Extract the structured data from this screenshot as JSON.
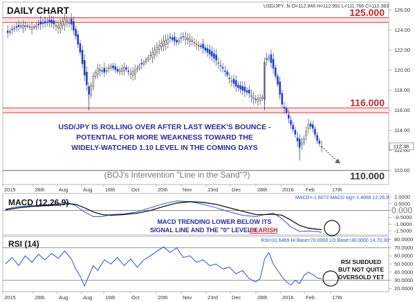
{
  "chart_data": [
    {
      "type": "candlestick",
      "title": "DAILY CHART",
      "symbol_readout": "USD/JPY .fx O=112.948 H=112.991 L=111.766 C=112.383",
      "x_tick_labels": [
        "2015",
        "28th",
        "Aug",
        "Aug",
        "16th",
        "Oct",
        "20th",
        "Nov",
        "23rd",
        "Dec",
        "28th",
        "2016",
        "Feb",
        "17th"
      ],
      "y_tick_labels": [
        "126.00",
        "124.00",
        "122.00",
        "120.00",
        "118.00",
        "116.00",
        "114.00",
        "112.00",
        "110.00"
      ],
      "ylim": [
        108.6,
        126.8
      ],
      "last_value_label": "112.38",
      "horizontal_levels": [
        {
          "value": 125.0,
          "label": "125.000",
          "color": "#e0363c"
        },
        {
          "value": 116.0,
          "label": "116.000",
          "color": "#e0363c"
        },
        {
          "value": 110.0,
          "label": "110.000",
          "color": "#333333"
        }
      ],
      "annotations": [
        "USD/JPY IS ROLLING OVER AFTER LAST WEEK'S BOUNCE -",
        "POTENTIAL FOR MORE WEAKNESS TOWARD THE",
        "WIDELY-WATCHED 1.10 LEVEL IN THE COMING DAYS"
      ],
      "callout": "(BOJ's Intervention \"Line in the Sand\"?)",
      "close_path": [
        [
          0,
          123.6
        ],
        [
          4,
          124.2
        ],
        [
          8,
          124.5
        ],
        [
          12,
          124.3
        ],
        [
          16,
          124.6
        ],
        [
          20,
          124.8
        ],
        [
          24,
          124.4
        ],
        [
          27,
          125.1
        ],
        [
          30,
          124.6
        ],
        [
          32,
          123.4
        ],
        [
          34,
          121.8
        ],
        [
          36,
          119.5
        ],
        [
          38,
          117.6
        ],
        [
          40,
          119.4
        ],
        [
          42,
          120.2
        ],
        [
          45,
          119.8
        ],
        [
          48,
          120.4
        ],
        [
          51,
          119.9
        ],
        [
          54,
          120.3
        ],
        [
          57,
          119.7
        ],
        [
          60,
          120.2
        ],
        [
          63,
          120.8
        ],
        [
          66,
          121.5
        ],
        [
          69,
          122.3
        ],
        [
          72,
          122.9
        ],
        [
          75,
          123.2
        ],
        [
          78,
          122.8
        ],
        [
          81,
          123.4
        ],
        [
          84,
          123.1
        ],
        [
          87,
          122.6
        ],
        [
          90,
          122.2
        ],
        [
          93,
          121.6
        ],
        [
          96,
          121.0
        ],
        [
          99,
          120.2
        ],
        [
          102,
          119.2
        ],
        [
          105,
          118.4
        ],
        [
          108,
          118.0
        ],
        [
          111,
          117.7
        ],
        [
          114,
          117.1
        ],
        [
          117,
          117.3
        ],
        [
          118,
          120.8
        ],
        [
          120,
          121.3
        ],
        [
          122,
          120.2
        ],
        [
          124,
          118.6
        ],
        [
          126,
          116.6
        ],
        [
          128,
          115.8
        ],
        [
          130,
          114.6
        ],
        [
          132,
          113.6
        ],
        [
          134,
          112.3
        ],
        [
          136,
          113.2
        ],
        [
          138,
          114.6
        ],
        [
          140,
          114.2
        ],
        [
          142,
          113.0
        ],
        [
          144,
          112.4
        ]
      ],
      "projection": [
        [
          144,
          112.4
        ],
        [
          150,
          110.7
        ]
      ]
    },
    {
      "type": "line",
      "title": "MACD (12,26,9)",
      "readout": "MACD=-1.6072 MACD sig=-1.4068 12,26,9",
      "y_tick_labels": [
        "1.0000",
        "0.5000",
        "0.000",
        "-0.5000",
        "-1.0000",
        "-1.5000"
      ],
      "ylim": [
        -1.8,
        1.25
      ],
      "zero_level": 0,
      "annotation_lines": [
        "MACD TRENDING LOWER BELOW ITS",
        "SIGNAL LINE AND THE \"0\" LEVEL = "
      ],
      "annotation_emphasis": "BEARISH",
      "series": [
        {
          "name": "MACD",
          "color": "#2d4fd6",
          "values": [
            [
              0,
              0.1
            ],
            [
              6,
              0.3
            ],
            [
              12,
              0.35
            ],
            [
              18,
              0.4
            ],
            [
              24,
              0.5
            ],
            [
              28,
              0.6
            ],
            [
              32,
              0.35
            ],
            [
              36,
              -0.1
            ],
            [
              40,
              -0.45
            ],
            [
              44,
              -0.45
            ],
            [
              48,
              -0.3
            ],
            [
              54,
              -0.25
            ],
            [
              60,
              -0.1
            ],
            [
              66,
              0.2
            ],
            [
              72,
              0.5
            ],
            [
              78,
              0.7
            ],
            [
              84,
              0.65
            ],
            [
              90,
              0.45
            ],
            [
              96,
              0.2
            ],
            [
              102,
              -0.1
            ],
            [
              108,
              -0.35
            ],
            [
              114,
              -0.45
            ],
            [
              118,
              -0.3
            ],
            [
              122,
              -0.2
            ],
            [
              126,
              -0.6
            ],
            [
              130,
              -1.2
            ],
            [
              134,
              -1.55
            ],
            [
              138,
              -1.5
            ],
            [
              142,
              -1.55
            ],
            [
              144,
              -1.61
            ]
          ]
        },
        {
          "name": "MACD sig",
          "color": "#111111",
          "values": [
            [
              0,
              0.05
            ],
            [
              6,
              0.2
            ],
            [
              12,
              0.3
            ],
            [
              18,
              0.35
            ],
            [
              24,
              0.4
            ],
            [
              28,
              0.5
            ],
            [
              32,
              0.45
            ],
            [
              36,
              0.2
            ],
            [
              40,
              -0.1
            ],
            [
              44,
              -0.3
            ],
            [
              48,
              -0.35
            ],
            [
              54,
              -0.3
            ],
            [
              60,
              -0.2
            ],
            [
              66,
              0.0
            ],
            [
              72,
              0.3
            ],
            [
              78,
              0.55
            ],
            [
              84,
              0.65
            ],
            [
              90,
              0.6
            ],
            [
              96,
              0.45
            ],
            [
              102,
              0.2
            ],
            [
              108,
              -0.05
            ],
            [
              114,
              -0.3
            ],
            [
              118,
              -0.3
            ],
            [
              122,
              -0.28
            ],
            [
              126,
              -0.35
            ],
            [
              130,
              -0.7
            ],
            [
              134,
              -1.1
            ],
            [
              138,
              -1.3
            ],
            [
              142,
              -1.38
            ],
            [
              144,
              -1.41
            ]
          ]
        }
      ]
    },
    {
      "type": "line",
      "title": "RSI (14)",
      "readout": "RSI=31.6469 Hi Base=70.0000 LO Base=30.0000 14,70,30",
      "y_tick_labels": [
        "80.0000",
        "70.0000",
        "60.0000",
        "50.0000",
        "40.0000",
        "30.0000",
        "20.0000"
      ],
      "ylim": [
        16,
        84
      ],
      "levels": [
        70,
        30
      ],
      "annotation_lines": [
        "RSI SUBDUED",
        "BUT NOT QUITE",
        "OVERSOLD YET"
      ],
      "series": [
        {
          "name": "RSI",
          "color": "#2d4fd6",
          "values": [
            [
              0,
              50
            ],
            [
              3,
              58
            ],
            [
              6,
              48
            ],
            [
              9,
              60
            ],
            [
              12,
              52
            ],
            [
              15,
              62
            ],
            [
              18,
              55
            ],
            [
              21,
              63
            ],
            [
              24,
              57
            ],
            [
              27,
              66
            ],
            [
              30,
              56
            ],
            [
              32,
              44
            ],
            [
              34,
              35
            ],
            [
              36,
              23
            ],
            [
              38,
              36
            ],
            [
              40,
              48
            ],
            [
              42,
              42
            ],
            [
              45,
              55
            ],
            [
              48,
              50
            ],
            [
              51,
              58
            ],
            [
              54,
              48
            ],
            [
              57,
              56
            ],
            [
              60,
              46
            ],
            [
              63,
              55
            ],
            [
              66,
              60
            ],
            [
              69,
              66
            ],
            [
              72,
              71
            ],
            [
              75,
              64
            ],
            [
              78,
              70
            ],
            [
              81,
              58
            ],
            [
              84,
              60
            ],
            [
              87,
              52
            ],
            [
              90,
              55
            ],
            [
              93,
              48
            ],
            [
              96,
              50
            ],
            [
              99,
              44
            ],
            [
              102,
              46
            ],
            [
              105,
              38
            ],
            [
              108,
              42
            ],
            [
              111,
              32
            ],
            [
              114,
              28
            ],
            [
              116,
              32
            ],
            [
              118,
              56
            ],
            [
              120,
              64
            ],
            [
              122,
              50
            ],
            [
              124,
              42
            ],
            [
              126,
              34
            ],
            [
              128,
              28
            ],
            [
              130,
              24
            ],
            [
              132,
              30
            ],
            [
              134,
              26
            ],
            [
              136,
              36
            ],
            [
              138,
              40
            ],
            [
              140,
              37
            ],
            [
              142,
              33
            ],
            [
              144,
              31.6
            ]
          ]
        }
      ]
    }
  ]
}
